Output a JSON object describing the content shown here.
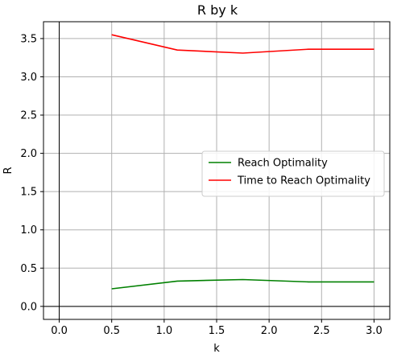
{
  "chart_data": {
    "type": "line",
    "title": "R by k",
    "xlabel": "k",
    "ylabel": "R",
    "xlim": [
      -0.15,
      3.15
    ],
    "ylim": [
      -0.17,
      3.72
    ],
    "x_ticks": [
      0.0,
      0.5,
      1.0,
      1.5,
      2.0,
      2.5,
      3.0
    ],
    "x_tick_labels": [
      "0.0",
      "0.5",
      "1.0",
      "1.5",
      "2.0",
      "2.5",
      "3.0"
    ],
    "y_ticks": [
      0.0,
      0.5,
      1.0,
      1.5,
      2.0,
      2.5,
      3.0,
      3.5
    ],
    "y_tick_labels": [
      "0.0",
      "0.5",
      "1.0",
      "1.5",
      "2.0",
      "2.5",
      "3.0",
      "3.5"
    ],
    "grid": true,
    "zero_lines": true,
    "legend_position": "center-right",
    "series": [
      {
        "name": "Reach Optimality",
        "color": "#008000",
        "x": [
          0.5,
          1.125,
          1.75,
          2.375,
          3.0
        ],
        "values": [
          0.23,
          0.33,
          0.35,
          0.32,
          0.32
        ]
      },
      {
        "name": "Time to Reach Optimality",
        "color": "#ff0000",
        "x": [
          0.5,
          1.125,
          1.75,
          2.375,
          3.0
        ],
        "values": [
          3.55,
          3.35,
          3.31,
          3.36,
          3.36
        ]
      }
    ]
  }
}
